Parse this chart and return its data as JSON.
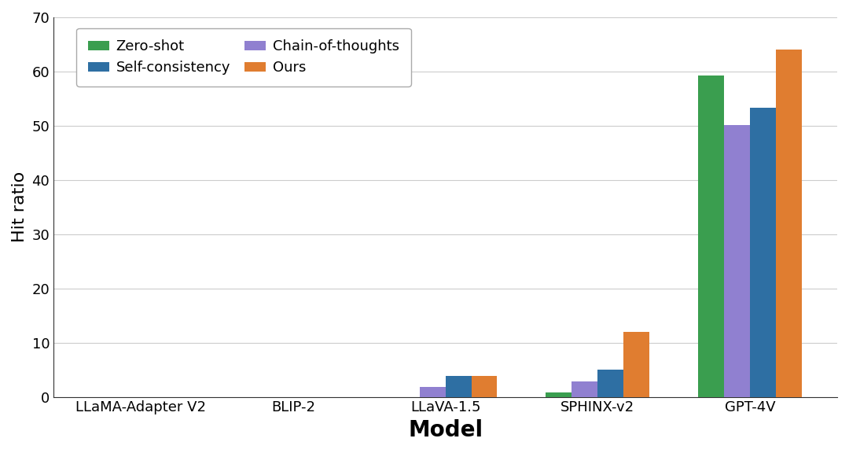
{
  "categories": [
    "LLaMA-Adapter V2",
    "BLIP-2",
    "LLaVA-1.5",
    "SPHINX-v2",
    "GPT-4V"
  ],
  "series": [
    {
      "label": "Zero-shot",
      "color": "#3a9e4f",
      "values": [
        0.0,
        0.0,
        0.0,
        0.8,
        59.3
      ]
    },
    {
      "label": "Chain-of-thoughts",
      "color": "#9080d0",
      "values": [
        0.0,
        0.0,
        1.8,
        2.8,
        50.2
      ]
    },
    {
      "label": "Self-consistency",
      "color": "#2e6fa3",
      "values": [
        0.0,
        0.0,
        3.8,
        5.0,
        53.3
      ]
    },
    {
      "label": "Ours",
      "color": "#e07d30",
      "values": [
        0.0,
        0.0,
        3.8,
        12.0,
        64.0
      ]
    }
  ],
  "ylabel": "Hit ratio",
  "xlabel": "Model",
  "ylim": [
    0,
    70
  ],
  "yticks": [
    0,
    10,
    20,
    30,
    40,
    50,
    60,
    70
  ],
  "legend_ncol": 2,
  "background_color": "#ffffff",
  "ylabel_fontsize": 16,
  "xlabel_fontsize": 20,
  "tick_fontsize": 13,
  "legend_fontsize": 13,
  "bar_width": 0.17
}
